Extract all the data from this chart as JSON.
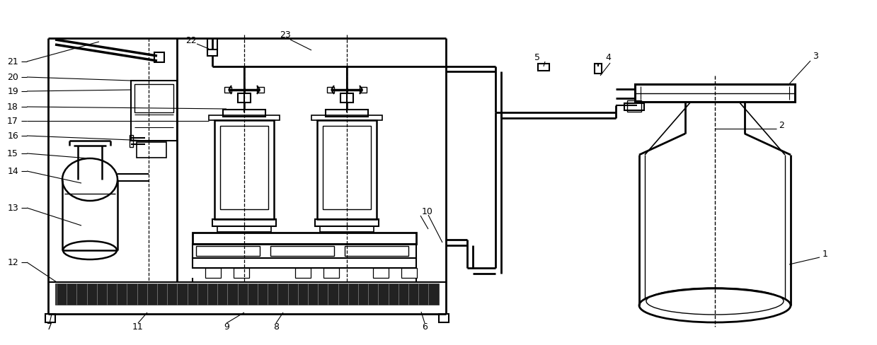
{
  "bg": "#ffffff",
  "lc": "#000000",
  "fig_w": 12.39,
  "fig_h": 4.89,
  "dpi": 100
}
